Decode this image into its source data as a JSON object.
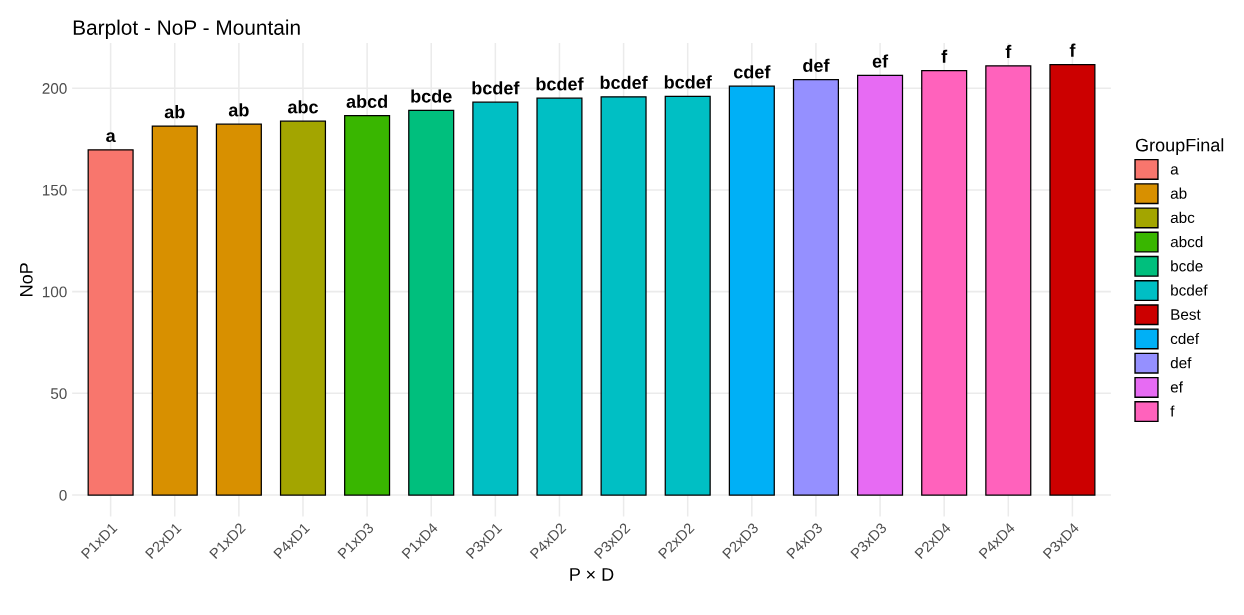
{
  "chart_data": {
    "type": "bar",
    "title": "Barplot - NoP - Mountain",
    "xlabel": "P × D",
    "ylabel": "NoP",
    "legend_title": "GroupFinal",
    "categories": [
      "P1xD1",
      "P2xD1",
      "P1xD2",
      "P4xD1",
      "P1xD3",
      "P1xD4",
      "P3xD1",
      "P4xD2",
      "P3xD2",
      "P2xD2",
      "P2xD3",
      "P4xD3",
      "P3xD3",
      "P2xD4",
      "P4xD4",
      "P3xD4"
    ],
    "series": [
      {
        "name": "a",
        "color": "#f8766d",
        "values": [
          169.7,
          null,
          null,
          null,
          null,
          null,
          null,
          null,
          null,
          null,
          null,
          null,
          null,
          null,
          null,
          null
        ],
        "value_labels": [
          "a",
          null,
          null,
          null,
          null,
          null,
          null,
          null,
          null,
          null,
          null,
          null,
          null,
          null,
          null,
          null
        ]
      },
      {
        "name": "ab",
        "color": "#d89000",
        "values": [
          null,
          181.4,
          182.3,
          null,
          null,
          null,
          null,
          null,
          null,
          null,
          null,
          null,
          null,
          null,
          null,
          null
        ],
        "value_labels": [
          null,
          "ab",
          "ab",
          null,
          null,
          null,
          null,
          null,
          null,
          null,
          null,
          null,
          null,
          null,
          null,
          null
        ]
      },
      {
        "name": "abc",
        "color": "#a3a500",
        "values": [
          null,
          null,
          null,
          183.8,
          null,
          null,
          null,
          null,
          null,
          null,
          null,
          null,
          null,
          null,
          null,
          null
        ],
        "value_labels": [
          null,
          null,
          null,
          "abc",
          null,
          null,
          null,
          null,
          null,
          null,
          null,
          null,
          null,
          null,
          null,
          null
        ]
      },
      {
        "name": "abcd",
        "color": "#39b600",
        "values": [
          null,
          null,
          null,
          null,
          186.5,
          null,
          null,
          null,
          null,
          null,
          null,
          null,
          null,
          null,
          null,
          null
        ],
        "value_labels": [
          null,
          null,
          null,
          null,
          "abcd",
          null,
          null,
          null,
          null,
          null,
          null,
          null,
          null,
          null,
          null,
          null
        ]
      },
      {
        "name": "bcde",
        "color": "#00bf7d",
        "values": [
          null,
          null,
          null,
          null,
          null,
          189.1,
          null,
          null,
          null,
          null,
          null,
          null,
          null,
          null,
          null,
          null
        ],
        "value_labels": [
          null,
          null,
          null,
          null,
          null,
          "bcde",
          null,
          null,
          null,
          null,
          null,
          null,
          null,
          null,
          null,
          null
        ]
      },
      {
        "name": "bcdef",
        "color": "#00bfc4",
        "values": [
          null,
          null,
          null,
          null,
          null,
          null,
          193.1,
          195.1,
          195.8,
          196.0,
          null,
          null,
          null,
          null,
          null,
          null
        ],
        "value_labels": [
          null,
          null,
          null,
          null,
          null,
          null,
          "bcdef",
          "bcdef",
          "bcdef",
          "bcdef",
          null,
          null,
          null,
          null,
          null,
          null
        ]
      },
      {
        "name": "Best",
        "color": "#cc0000",
        "values": [
          null,
          null,
          null,
          null,
          null,
          null,
          null,
          null,
          null,
          null,
          null,
          null,
          null,
          null,
          null,
          211.6
        ],
        "value_labels": [
          null,
          null,
          null,
          null,
          null,
          null,
          null,
          null,
          null,
          null,
          null,
          null,
          null,
          null,
          null,
          "f"
        ]
      },
      {
        "name": "cdef",
        "color": "#00b0f6",
        "values": [
          null,
          null,
          null,
          null,
          null,
          null,
          null,
          null,
          null,
          null,
          201.0,
          null,
          null,
          null,
          null,
          null
        ],
        "value_labels": [
          null,
          null,
          null,
          null,
          null,
          null,
          null,
          null,
          null,
          null,
          "cdef",
          null,
          null,
          null,
          null,
          null
        ]
      },
      {
        "name": "def",
        "color": "#9590ff",
        "values": [
          null,
          null,
          null,
          null,
          null,
          null,
          null,
          null,
          null,
          null,
          null,
          204.2,
          null,
          null,
          null,
          null
        ],
        "value_labels": [
          null,
          null,
          null,
          null,
          null,
          null,
          null,
          null,
          null,
          null,
          null,
          "def",
          null,
          null,
          null,
          null
        ]
      },
      {
        "name": "ef",
        "color": "#e76bf3",
        "values": [
          null,
          null,
          null,
          null,
          null,
          null,
          null,
          null,
          null,
          null,
          null,
          null,
          206.3,
          null,
          null,
          null
        ],
        "value_labels": [
          null,
          null,
          null,
          null,
          null,
          null,
          null,
          null,
          null,
          null,
          null,
          null,
          "ef",
          null,
          null,
          null
        ]
      },
      {
        "name": "f",
        "color": "#ff62bc",
        "values": [
          null,
          null,
          null,
          null,
          null,
          null,
          null,
          null,
          null,
          null,
          null,
          null,
          null,
          208.6,
          211.0,
          null
        ],
        "value_labels": [
          null,
          null,
          null,
          null,
          null,
          null,
          null,
          null,
          null,
          null,
          null,
          null,
          null,
          "f",
          "f",
          null
        ]
      }
    ],
    "ylim": [
      -10.6,
      222.2
    ],
    "yticks": [
      0,
      50,
      100,
      150,
      200
    ],
    "grid": true,
    "legend": "right"
  }
}
